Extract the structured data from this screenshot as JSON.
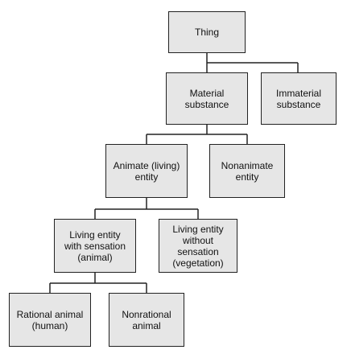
{
  "nodes": {
    "thing": "Thing",
    "material_substance": "Material\nsubstance",
    "immaterial_substance": "Immaterial\nsubstance",
    "animate_entity": "Animate (living)\nentity",
    "nonanimate_entity": "Nonanimate\nentity",
    "living_with_sensation": "Living entity\nwith sensation\n(animal)",
    "living_without_sensation": "Living entity\nwithout\nsensation\n(vegetation)",
    "rational_animal": "Rational animal\n(human)",
    "nonrational_animal": "Nonrational\nanimal"
  },
  "colors": {
    "box_fill": "#e6e6e6",
    "box_border": "#222222",
    "line": "#222222"
  }
}
